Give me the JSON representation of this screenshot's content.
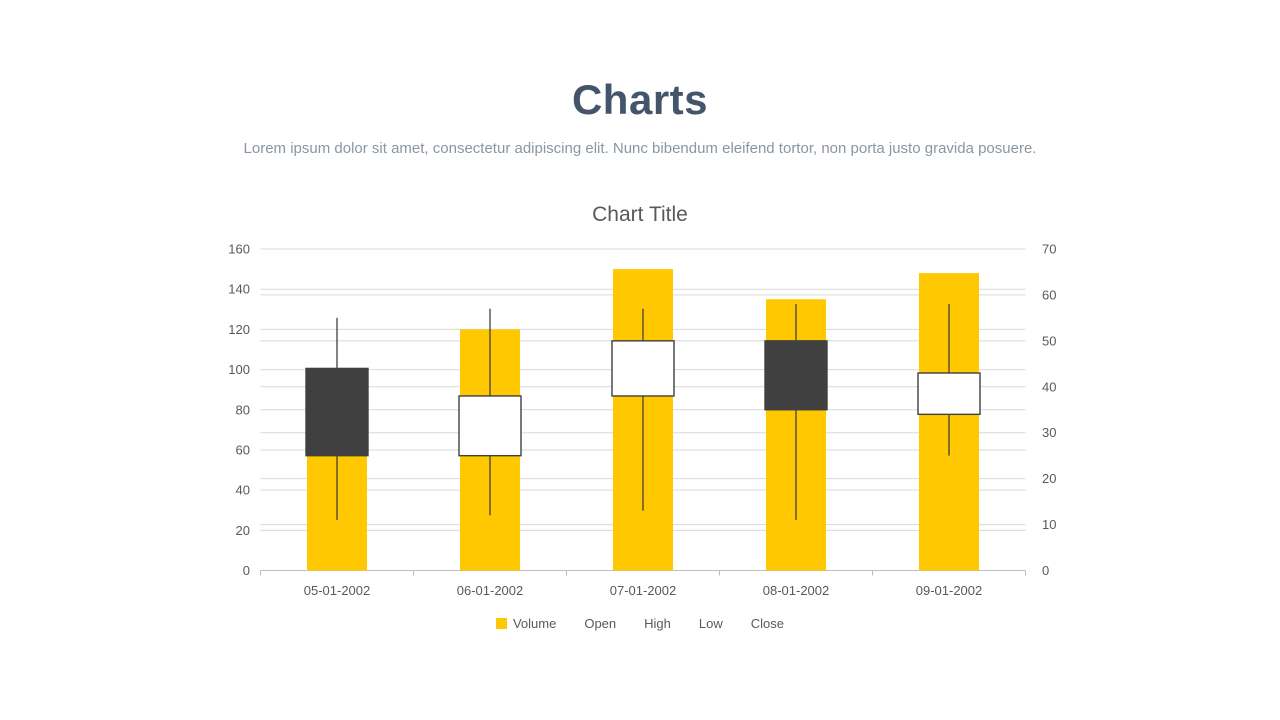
{
  "page": {
    "title": "Charts",
    "subtitle": "Lorem ipsum dolor sit amet, consectetur adipiscing elit. Nunc bibendum eleifend tortor, non porta justo gravida posuere."
  },
  "chart_data": {
    "type": "candlestick-volume",
    "title": "Chart Title",
    "categories": [
      "05-01-2002",
      "06-01-2002",
      "07-01-2002",
      "08-01-2002",
      "09-01-2002"
    ],
    "series": [
      {
        "name": "Volume",
        "type": "bar",
        "axis": "left",
        "values": [
          57,
          120,
          150,
          135,
          148
        ]
      },
      {
        "name": "Open",
        "type": "ohlc",
        "axis": "right",
        "values": [
          44,
          25,
          38,
          50,
          34
        ]
      },
      {
        "name": "High",
        "type": "ohlc",
        "axis": "right",
        "values": [
          55,
          57,
          57,
          58,
          58
        ]
      },
      {
        "name": "Low",
        "type": "ohlc",
        "axis": "right",
        "values": [
          11,
          12,
          13,
          11,
          25
        ]
      },
      {
        "name": "Close",
        "type": "ohlc",
        "axis": "right",
        "values": [
          25,
          38,
          50,
          35,
          43
        ]
      }
    ],
    "left_axis": {
      "min": 0,
      "max": 160,
      "ticks": [
        0,
        20,
        40,
        60,
        80,
        100,
        120,
        140,
        160
      ]
    },
    "right_axis": {
      "min": 0,
      "max": 70,
      "ticks": [
        0,
        10,
        20,
        30,
        40,
        50,
        60,
        70
      ]
    },
    "legend": [
      {
        "label": "Volume",
        "swatch": "#FFC800"
      },
      {
        "label": "Open"
      },
      {
        "label": "High"
      },
      {
        "label": "Low"
      },
      {
        "label": "Close"
      }
    ],
    "legend_position": "bottom",
    "grid": true,
    "colors": {
      "volume_bar": "#FFC800",
      "down_body": "#404040",
      "up_body": "#FFFFFF",
      "candle_outline": "#404040",
      "wick": "#404040",
      "gridline": "#D9D9D9",
      "axis_line": "#BFBFBF",
      "label": "#595959",
      "title": "#44546A",
      "subtitle_text": "#8b96a0"
    }
  }
}
